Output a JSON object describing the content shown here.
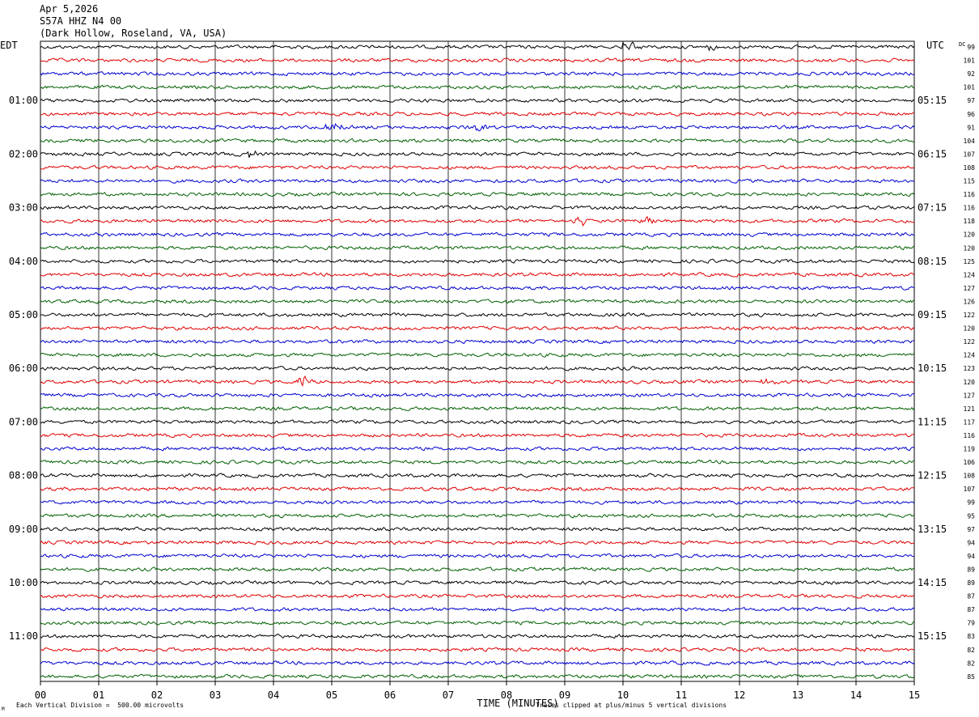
{
  "header": {
    "date": "Apr 5,2026",
    "station": "S57A HHZ N4 00",
    "location": "(Dark Hollow, Roseland, VA, USA)"
  },
  "chart_data": {
    "type": "line",
    "description_kind": "helicorder",
    "left_timezone": "EDT",
    "right_timezone": "UTC",
    "dc_header": "DC",
    "minutes_per_line": 15,
    "line_count": 48,
    "trace_colors": [
      "#000000",
      "#e00000",
      "#0000d0",
      "#006000"
    ],
    "left_hour_labels": [
      "01:00",
      "02:00",
      "03:00",
      "04:00",
      "05:00",
      "06:00",
      "07:00",
      "08:00",
      "09:00",
      "10:00",
      "11:00"
    ],
    "right_hour_labels": [
      "05:15",
      "06:15",
      "07:15",
      "08:15",
      "09:15",
      "10:15",
      "11:15",
      "12:15",
      "13:15",
      "14:15",
      "15:15"
    ],
    "dc_offsets": [
      99,
      101,
      92,
      101,
      97,
      96,
      91,
      104,
      107,
      108,
      115,
      116,
      116,
      118,
      120,
      120,
      125,
      124,
      127,
      126,
      122,
      120,
      122,
      124,
      123,
      120,
      127,
      121,
      117,
      116,
      119,
      106,
      108,
      107,
      99,
      95,
      97,
      94,
      94,
      89,
      89,
      87,
      87,
      79,
      83,
      82,
      82,
      85
    ],
    "x_ticks": [
      "00",
      "01",
      "02",
      "03",
      "04",
      "05",
      "06",
      "07",
      "08",
      "09",
      "10",
      "11",
      "12",
      "13",
      "14",
      "15"
    ],
    "xlim": [
      0,
      15
    ],
    "xlabel": "TIME (MINUTES)",
    "events": [
      {
        "line": 0,
        "minute": 10.1,
        "amplitude": 2.2
      },
      {
        "line": 0,
        "minute": 11.5,
        "amplitude": 1.2
      },
      {
        "line": 6,
        "minute": 5.0,
        "amplitude": 1.6
      },
      {
        "line": 6,
        "minute": 7.5,
        "amplitude": 1.5
      },
      {
        "line": 8,
        "minute": 3.6,
        "amplitude": 1.4
      },
      {
        "line": 13,
        "minute": 9.3,
        "amplitude": 1.8
      },
      {
        "line": 13,
        "minute": 10.4,
        "amplitude": 1.4
      },
      {
        "line": 25,
        "minute": 4.5,
        "amplitude": 2.3
      },
      {
        "line": 25,
        "minute": 12.5,
        "amplitude": 1.2
      }
    ]
  },
  "footer": {
    "scale_note": "Each Vertical Division =  500.00 microvolts",
    "clip_note": "Traces clipped at plus/minus 5 vertical divisions",
    "corner_mark": "M"
  }
}
